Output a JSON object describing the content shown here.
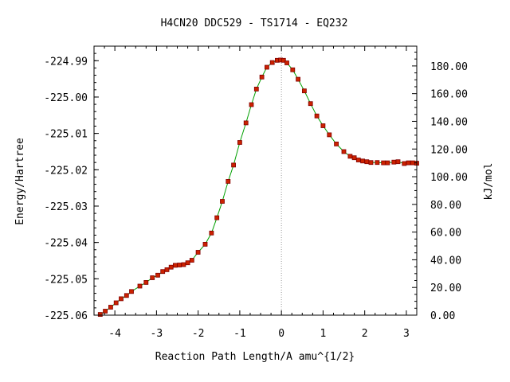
{
  "chart_data": {
    "type": "line",
    "title": "H4CN20   DDC529 - TS1714 - EQ232",
    "xlabel": "Reaction Path Length/A amu^{1/2}",
    "ylabel": "Energy/Hartree",
    "y2label": "kJ/mol",
    "xlim": [
      -4.5,
      3.25
    ],
    "ylim": [
      -225.06,
      -224.986
    ],
    "y2lim": [
      0.0,
      194.3
    ],
    "x_ticks": [
      -4,
      -3,
      -2,
      -1,
      0,
      1,
      2,
      3
    ],
    "x_tick_labels": [
      "-4",
      "-3",
      "-2",
      "-1",
      "0",
      "1",
      "2",
      "3"
    ],
    "y_ticks": [
      -225.06,
      -225.05,
      -225.04,
      -225.03,
      -225.02,
      -225.01,
      -225.0,
      -224.99
    ],
    "y_tick_labels": [
      "-225.06",
      "-225.05",
      "-225.04",
      "-225.03",
      "-225.02",
      "-225.01",
      "-225.00",
      "-224.99"
    ],
    "y2_ticks": [
      0,
      20,
      40,
      60,
      80,
      100,
      120,
      140,
      160,
      180
    ],
    "y2_tick_labels": [
      "0.00",
      "20.00",
      "40.00",
      "60.00",
      "80.00",
      "100.00",
      "120.00",
      "140.00",
      "160.00",
      "180.00"
    ],
    "ts_marker_x": 0.0,
    "grid": false,
    "legend": "none",
    "colors": {
      "line": "#00a000",
      "marker": "#cc2200",
      "marker_edge": "#800000",
      "ts_line": "#999999"
    },
    "series": [
      {
        "x": [
          -4.35,
          -4.23,
          -4.1,
          -3.97,
          -3.85,
          -3.72,
          -3.6,
          -3.4,
          -3.25,
          -3.1,
          -2.97,
          -2.85,
          -2.75,
          -2.65,
          -2.55,
          -2.45,
          -2.35,
          -2.25,
          -2.15,
          -2.0,
          -1.83,
          -1.68,
          -1.55,
          -1.42,
          -1.28,
          -1.15,
          -1.0,
          -0.85,
          -0.72,
          -0.6,
          -0.47,
          -0.35,
          -0.22,
          -0.1,
          -0.02,
          0.05,
          0.13,
          0.27,
          0.4,
          0.55,
          0.7,
          0.85,
          1.0,
          1.15,
          1.32,
          1.5,
          1.65,
          1.75,
          1.85,
          1.95,
          2.05,
          2.15,
          2.3,
          2.45,
          2.55,
          2.7,
          2.8,
          2.95,
          3.05,
          3.15,
          3.25
        ],
        "y": [
          -225.0598,
          -225.0589,
          -225.0578,
          -225.0566,
          -225.0555,
          -225.0546,
          -225.0535,
          -225.052,
          -225.051,
          -225.0497,
          -225.049,
          -225.048,
          -225.0475,
          -225.0468,
          -225.0463,
          -225.0462,
          -225.0461,
          -225.0456,
          -225.0449,
          -225.0427,
          -225.0405,
          -225.0374,
          -225.0332,
          -225.0287,
          -225.0232,
          -225.0187,
          -225.0125,
          -225.0071,
          -225.0021,
          -224.9978,
          -224.9945,
          -224.9918,
          -224.9905,
          -224.9899,
          -224.9898,
          -224.9899,
          -224.9906,
          -224.9925,
          -224.9951,
          -224.9983,
          -225.0018,
          -225.0052,
          -225.0079,
          -225.0104,
          -225.0129,
          -225.015,
          -225.0163,
          -225.0167,
          -225.0173,
          -225.0176,
          -225.0178,
          -225.018,
          -225.018,
          -225.0181,
          -225.0181,
          -225.0179,
          -225.0178,
          -225.0183,
          -225.0181,
          -225.0181,
          -225.0182
        ]
      }
    ]
  }
}
